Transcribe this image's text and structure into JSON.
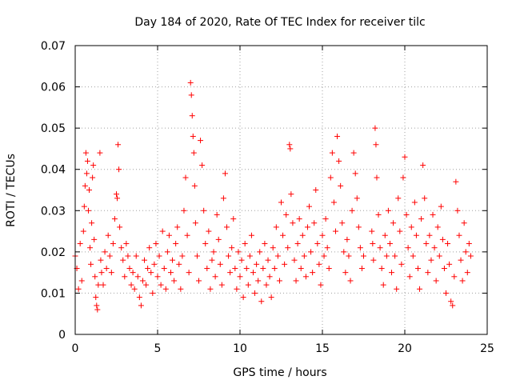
{
  "chart_data": {
    "type": "scatter",
    "title": "Day 184 of 2020, Rate Of TEC Index for receiver tilc",
    "xlabel": "GPS time / hours",
    "ylabel": "ROTI / TECUs",
    "xlim": [
      0,
      25
    ],
    "ylim": [
      0,
      0.07
    ],
    "xticks": [
      0,
      5,
      10,
      15,
      20,
      25
    ],
    "yticks": [
      0,
      0.01,
      0.02,
      0.03,
      0.04,
      0.05,
      0.06,
      0.07
    ],
    "xtick_labels": [
      "0",
      "5",
      "10",
      "15",
      "20",
      "25"
    ],
    "ytick_labels": [
      "0",
      "0.01",
      "0.02",
      "0.03",
      "0.04",
      "0.05",
      "0.06",
      "0.07"
    ],
    "grid": true,
    "marker": "+",
    "color": "#ff0000",
    "series": [
      {
        "name": "ROTI",
        "points": [
          [
            0.0,
            0.019
          ],
          [
            0.1,
            0.016
          ],
          [
            0.2,
            0.011
          ],
          [
            0.3,
            0.022
          ],
          [
            0.4,
            0.013
          ],
          [
            0.5,
            0.025
          ],
          [
            0.55,
            0.031
          ],
          [
            0.6,
            0.036
          ],
          [
            0.65,
            0.044
          ],
          [
            0.7,
            0.039
          ],
          [
            0.75,
            0.042
          ],
          [
            0.8,
            0.03
          ],
          [
            0.85,
            0.035
          ],
          [
            0.9,
            0.021
          ],
          [
            0.95,
            0.017
          ],
          [
            1.0,
            0.027
          ],
          [
            1.05,
            0.038
          ],
          [
            1.1,
            0.041
          ],
          [
            1.15,
            0.023
          ],
          [
            1.2,
            0.014
          ],
          [
            1.25,
            0.009
          ],
          [
            1.3,
            0.007
          ],
          [
            1.35,
            0.006
          ],
          [
            1.4,
            0.012
          ],
          [
            1.5,
            0.044
          ],
          [
            1.55,
            0.018
          ],
          [
            1.6,
            0.015
          ],
          [
            1.7,
            0.012
          ],
          [
            1.8,
            0.02
          ],
          [
            1.9,
            0.016
          ],
          [
            2.0,
            0.024
          ],
          [
            2.1,
            0.019
          ],
          [
            2.2,
            0.015
          ],
          [
            2.3,
            0.022
          ],
          [
            2.4,
            0.028
          ],
          [
            2.5,
            0.034
          ],
          [
            2.55,
            0.033
          ],
          [
            2.6,
            0.046
          ],
          [
            2.65,
            0.04
          ],
          [
            2.7,
            0.026
          ],
          [
            2.8,
            0.021
          ],
          [
            2.9,
            0.018
          ],
          [
            3.0,
            0.014
          ],
          [
            3.1,
            0.022
          ],
          [
            3.2,
            0.019
          ],
          [
            3.3,
            0.016
          ],
          [
            3.4,
            0.012
          ],
          [
            3.5,
            0.015
          ],
          [
            3.6,
            0.011
          ],
          [
            3.7,
            0.019
          ],
          [
            3.8,
            0.014
          ],
          [
            3.9,
            0.009
          ],
          [
            4.0,
            0.007
          ],
          [
            4.1,
            0.013
          ],
          [
            4.2,
            0.018
          ],
          [
            4.3,
            0.012
          ],
          [
            4.4,
            0.016
          ],
          [
            4.5,
            0.021
          ],
          [
            4.6,
            0.015
          ],
          [
            4.7,
            0.01
          ],
          [
            4.8,
            0.017
          ],
          [
            4.9,
            0.022
          ],
          [
            5.0,
            0.014
          ],
          [
            5.1,
            0.019
          ],
          [
            5.2,
            0.012
          ],
          [
            5.3,
            0.025
          ],
          [
            5.4,
            0.016
          ],
          [
            5.5,
            0.011
          ],
          [
            5.6,
            0.02
          ],
          [
            5.7,
            0.024
          ],
          [
            5.8,
            0.015
          ],
          [
            5.9,
            0.018
          ],
          [
            6.0,
            0.013
          ],
          [
            6.1,
            0.022
          ],
          [
            6.2,
            0.026
          ],
          [
            6.3,
            0.017
          ],
          [
            6.4,
            0.011
          ],
          [
            6.5,
            0.019
          ],
          [
            6.6,
            0.03
          ],
          [
            6.7,
            0.038
          ],
          [
            6.8,
            0.024
          ],
          [
            6.9,
            0.015
          ],
          [
            7.0,
            0.061
          ],
          [
            7.05,
            0.058
          ],
          [
            7.1,
            0.053
          ],
          [
            7.15,
            0.048
          ],
          [
            7.2,
            0.044
          ],
          [
            7.25,
            0.036
          ],
          [
            7.3,
            0.027
          ],
          [
            7.4,
            0.019
          ],
          [
            7.5,
            0.013
          ],
          [
            7.6,
            0.047
          ],
          [
            7.7,
            0.041
          ],
          [
            7.8,
            0.03
          ],
          [
            7.9,
            0.022
          ],
          [
            8.0,
            0.016
          ],
          [
            8.1,
            0.025
          ],
          [
            8.2,
            0.011
          ],
          [
            8.3,
            0.018
          ],
          [
            8.4,
            0.02
          ],
          [
            8.5,
            0.014
          ],
          [
            8.6,
            0.029
          ],
          [
            8.7,
            0.023
          ],
          [
            8.8,
            0.017
          ],
          [
            8.9,
            0.012
          ],
          [
            9.0,
            0.033
          ],
          [
            9.1,
            0.039
          ],
          [
            9.2,
            0.026
          ],
          [
            9.3,
            0.019
          ],
          [
            9.4,
            0.015
          ],
          [
            9.5,
            0.021
          ],
          [
            9.6,
            0.028
          ],
          [
            9.7,
            0.016
          ],
          [
            9.8,
            0.011
          ],
          [
            9.9,
            0.02
          ],
          [
            10.0,
            0.014
          ],
          [
            10.1,
            0.018
          ],
          [
            10.2,
            0.009
          ],
          [
            10.3,
            0.022
          ],
          [
            10.4,
            0.016
          ],
          [
            10.5,
            0.012
          ],
          [
            10.6,
            0.019
          ],
          [
            10.7,
            0.024
          ],
          [
            10.8,
            0.015
          ],
          [
            10.9,
            0.01
          ],
          [
            11.0,
            0.017
          ],
          [
            11.1,
            0.013
          ],
          [
            11.2,
            0.02
          ],
          [
            11.3,
            0.008
          ],
          [
            11.4,
            0.016
          ],
          [
            11.5,
            0.022
          ],
          [
            11.6,
            0.012
          ],
          [
            11.7,
            0.018
          ],
          [
            11.8,
            0.014
          ],
          [
            11.9,
            0.009
          ],
          [
            12.0,
            0.021
          ],
          [
            12.1,
            0.016
          ],
          [
            12.2,
            0.026
          ],
          [
            12.3,
            0.019
          ],
          [
            12.4,
            0.013
          ],
          [
            12.5,
            0.032
          ],
          [
            12.6,
            0.024
          ],
          [
            12.7,
            0.017
          ],
          [
            12.8,
            0.029
          ],
          [
            12.9,
            0.021
          ],
          [
            13.0,
            0.046
          ],
          [
            13.05,
            0.045
          ],
          [
            13.1,
            0.034
          ],
          [
            13.2,
            0.027
          ],
          [
            13.3,
            0.018
          ],
          [
            13.4,
            0.013
          ],
          [
            13.5,
            0.022
          ],
          [
            13.6,
            0.028
          ],
          [
            13.7,
            0.016
          ],
          [
            13.8,
            0.024
          ],
          [
            13.9,
            0.019
          ],
          [
            14.0,
            0.014
          ],
          [
            14.1,
            0.026
          ],
          [
            14.2,
            0.031
          ],
          [
            14.3,
            0.02
          ],
          [
            14.4,
            0.015
          ],
          [
            14.5,
            0.027
          ],
          [
            14.6,
            0.035
          ],
          [
            14.7,
            0.022
          ],
          [
            14.8,
            0.017
          ],
          [
            14.9,
            0.012
          ],
          [
            15.0,
            0.024
          ],
          [
            15.1,
            0.019
          ],
          [
            15.2,
            0.028
          ],
          [
            15.3,
            0.021
          ],
          [
            15.4,
            0.016
          ],
          [
            15.5,
            0.038
          ],
          [
            15.6,
            0.044
          ],
          [
            15.7,
            0.032
          ],
          [
            15.8,
            0.025
          ],
          [
            15.9,
            0.048
          ],
          [
            16.0,
            0.042
          ],
          [
            16.1,
            0.036
          ],
          [
            16.2,
            0.027
          ],
          [
            16.3,
            0.02
          ],
          [
            16.4,
            0.015
          ],
          [
            16.5,
            0.023
          ],
          [
            16.6,
            0.019
          ],
          [
            16.7,
            0.013
          ],
          [
            16.8,
            0.03
          ],
          [
            16.9,
            0.044
          ],
          [
            17.0,
            0.039
          ],
          [
            17.1,
            0.033
          ],
          [
            17.2,
            0.026
          ],
          [
            17.3,
            0.021
          ],
          [
            17.4,
            0.016
          ],
          [
            17.5,
            0.019
          ],
          [
            18.0,
            0.025
          ],
          [
            18.05,
            0.022
          ],
          [
            18.1,
            0.018
          ],
          [
            18.2,
            0.05
          ],
          [
            18.25,
            0.046
          ],
          [
            18.3,
            0.038
          ],
          [
            18.4,
            0.029
          ],
          [
            18.5,
            0.021
          ],
          [
            18.6,
            0.016
          ],
          [
            18.7,
            0.012
          ],
          [
            18.8,
            0.024
          ],
          [
            18.9,
            0.019
          ],
          [
            19.0,
            0.03
          ],
          [
            19.1,
            0.022
          ],
          [
            19.2,
            0.015
          ],
          [
            19.3,
            0.027
          ],
          [
            19.4,
            0.019
          ],
          [
            19.5,
            0.011
          ],
          [
            19.6,
            0.033
          ],
          [
            19.7,
            0.025
          ],
          [
            19.8,
            0.017
          ],
          [
            19.9,
            0.038
          ],
          [
            20.0,
            0.043
          ],
          [
            20.1,
            0.029
          ],
          [
            20.2,
            0.021
          ],
          [
            20.3,
            0.014
          ],
          [
            20.4,
            0.026
          ],
          [
            20.5,
            0.019
          ],
          [
            20.6,
            0.032
          ],
          [
            20.7,
            0.024
          ],
          [
            20.8,
            0.016
          ],
          [
            20.9,
            0.011
          ],
          [
            21.0,
            0.028
          ],
          [
            21.1,
            0.041
          ],
          [
            21.2,
            0.033
          ],
          [
            21.3,
            0.022
          ],
          [
            21.4,
            0.015
          ],
          [
            21.5,
            0.024
          ],
          [
            21.6,
            0.018
          ],
          [
            21.7,
            0.029
          ],
          [
            21.8,
            0.021
          ],
          [
            21.9,
            0.013
          ],
          [
            22.0,
            0.026
          ],
          [
            22.1,
            0.019
          ],
          [
            22.2,
            0.031
          ],
          [
            22.3,
            0.023
          ],
          [
            22.4,
            0.016
          ],
          [
            22.5,
            0.01
          ],
          [
            22.6,
            0.022
          ],
          [
            22.7,
            0.017
          ],
          [
            22.8,
            0.008
          ],
          [
            22.9,
            0.007
          ],
          [
            23.0,
            0.014
          ],
          [
            23.1,
            0.037
          ],
          [
            23.2,
            0.03
          ],
          [
            23.3,
            0.024
          ],
          [
            23.4,
            0.018
          ],
          [
            23.5,
            0.013
          ],
          [
            23.6,
            0.027
          ],
          [
            23.7,
            0.02
          ],
          [
            23.8,
            0.015
          ],
          [
            23.9,
            0.022
          ],
          [
            24.0,
            0.019
          ]
        ]
      }
    ]
  }
}
